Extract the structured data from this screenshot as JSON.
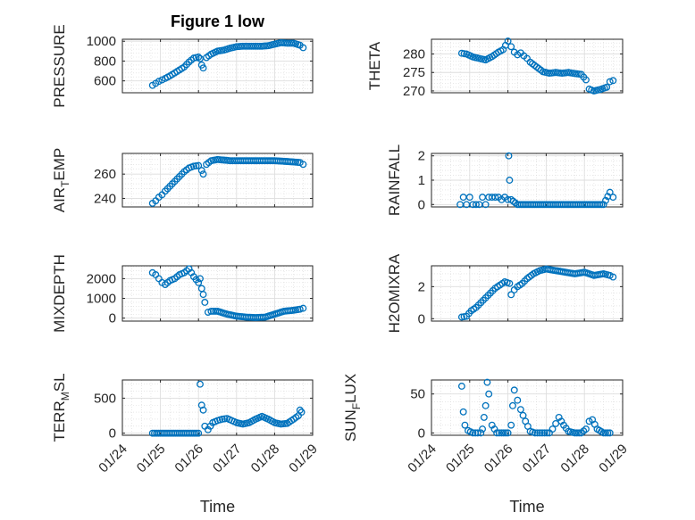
{
  "figure_title": "Figure 1 low",
  "marker_color": "#0072bd",
  "chart_data": [
    {
      "id": "pressure",
      "type": "scatter",
      "title": "Figure 1 low",
      "ylabel": "PRESSURE",
      "xlim": [
        "01/24",
        "01/29"
      ],
      "ylim": [
        480,
        1020
      ],
      "yticks": [
        600,
        800,
        1000
      ],
      "grid": true,
      "xticklabels": false,
      "x": [
        "01/24 19:00",
        "01/24 21:00",
        "01/24 23:00",
        "01/25 01:00",
        "01/25 03:00",
        "01/25 06:00",
        "01/25 09:00",
        "01/25 12:00",
        "01/25 15:00",
        "01/25 18:00",
        "01/25 21:00",
        "01/26 00:00",
        "01/26 01:00",
        "01/26 02:00",
        "01/26 03:00",
        "01/26 05:00",
        "01/26 08:00",
        "01/26 12:00",
        "01/26 16:00",
        "01/26 20:00",
        "01/27 00:00",
        "01/27 04:00",
        "01/27 08:00",
        "01/27 12:00",
        "01/27 16:00",
        "01/27 20:00",
        "01/28 00:00",
        "01/28 04:00",
        "01/28 08:00",
        "01/28 12:00",
        "01/28 16:00",
        "01/28 18:00"
      ],
      "y": [
        555,
        575,
        595,
        610,
        625,
        650,
        680,
        710,
        740,
        790,
        830,
        840,
        825,
        760,
        730,
        835,
        870,
        900,
        910,
        930,
        945,
        950,
        950,
        950,
        950,
        955,
        970,
        985,
        980,
        980,
        960,
        935
      ]
    },
    {
      "id": "theta",
      "type": "scatter",
      "ylabel": "THETA",
      "xlim": [
        "01/24",
        "01/29"
      ],
      "ylim": [
        269.5,
        284
      ],
      "yticks": [
        270,
        275,
        280
      ],
      "grid": true,
      "xticklabels": false,
      "x": [
        "01/24 19:00",
        "01/24 22:00",
        "01/25 02:00",
        "01/25 06:00",
        "01/25 10:00",
        "01/25 14:00",
        "01/25 18:00",
        "01/25 21:00",
        "01/26 00:00",
        "01/26 02:00",
        "01/26 04:00",
        "01/26 06:00",
        "01/26 08:00",
        "01/26 10:00",
        "01/26 12:00",
        "01/26 14:00",
        "01/26 18:00",
        "01/26 22:00",
        "01/27 02:00",
        "01/27 06:00",
        "01/27 10:00",
        "01/27 14:00",
        "01/27 18:00",
        "01/27 22:00",
        "01/28 01:00",
        "01/28 03:00",
        "01/28 06:00",
        "01/28 10:00",
        "01/28 14:00",
        "01/28 16:00",
        "01/28 18:00"
      ],
      "y": [
        280.2,
        280.0,
        279.2,
        278.8,
        278.4,
        279.3,
        280.5,
        281.2,
        283.5,
        282.0,
        280.5,
        279.8,
        280.3,
        279.5,
        278.8,
        277.8,
        276.5,
        275.2,
        274.8,
        275.0,
        274.8,
        275.0,
        274.7,
        274.5,
        273.0,
        270.5,
        270.0,
        270.4,
        271.0,
        272.5,
        272.8
      ]
    },
    {
      "id": "air-temp",
      "type": "scatter",
      "ylabel": "AIR_TEMP",
      "xlim": [
        "01/24",
        "01/29"
      ],
      "ylim": [
        233,
        277
      ],
      "yticks": [
        240,
        260
      ],
      "grid": true,
      "xticklabels": false,
      "x": [
        "01/24 19:00",
        "01/24 21:00",
        "01/24 23:00",
        "01/25 01:00",
        "01/25 03:00",
        "01/25 06:00",
        "01/25 09:00",
        "01/25 12:00",
        "01/25 15:00",
        "01/25 18:00",
        "01/25 21:00",
        "01/26 00:00",
        "01/26 02:00",
        "01/26 03:00",
        "01/26 05:00",
        "01/26 08:00",
        "01/26 12:00",
        "01/26 16:00",
        "01/26 20:00",
        "01/27 00:00",
        "01/27 06:00",
        "01/27 12:00",
        "01/27 18:00",
        "01/28 00:00",
        "01/28 06:00",
        "01/28 12:00",
        "01/28 16:00",
        "01/28 18:00"
      ],
      "y": [
        236,
        238,
        241,
        243,
        246,
        250,
        254,
        258,
        262,
        265,
        266.5,
        267,
        263,
        260,
        268,
        271,
        272,
        271.5,
        271,
        271,
        271,
        271,
        271,
        271,
        270.5,
        270,
        269.5,
        268
      ]
    },
    {
      "id": "rainfall",
      "type": "scatter",
      "ylabel": "RAINFALL",
      "xlim": [
        "01/24",
        "01/29"
      ],
      "ylim": [
        -0.1,
        2.1
      ],
      "yticks": [
        0,
        1,
        2
      ],
      "grid": true,
      "xticklabels": false,
      "x": [
        "01/24 18:00",
        "01/24 20:00",
        "01/24 22:00",
        "01/25 00:00",
        "01/25 02:00",
        "01/25 04:00",
        "01/25 06:00",
        "01/25 08:00",
        "01/25 10:00",
        "01/25 12:00",
        "01/25 14:00",
        "01/25 16:00",
        "01/25 18:00",
        "01/25 20:00",
        "01/25 22:00",
        "01/26 00:00",
        "01/26 00:30",
        "01/26 01:00",
        "01/26 02:00",
        "01/26 06:00",
        "01/26 12:00",
        "01/26 18:00",
        "01/27 00:00",
        "01/27 06:00",
        "01/27 12:00",
        "01/27 18:00",
        "01/28 00:00",
        "01/28 06:00",
        "01/28 12:00",
        "01/28 16:00",
        "01/28 18:00"
      ],
      "y": [
        0,
        0.3,
        0,
        0.3,
        0,
        0,
        0,
        0.3,
        0,
        0.3,
        0.3,
        0.3,
        0.3,
        0.2,
        0.3,
        0.2,
        2.0,
        1.0,
        0.2,
        0,
        0,
        0,
        0,
        0,
        0,
        0,
        0,
        0,
        0,
        0.5,
        0.3
      ]
    },
    {
      "id": "mixdepth",
      "type": "scatter",
      "ylabel": "MIXDEPTH",
      "xlim": [
        "01/24",
        "01/29"
      ],
      "ylim": [
        -150,
        2650
      ],
      "yticks": [
        0,
        1000,
        2000
      ],
      "grid": true,
      "xticklabels": false,
      "x": [
        "01/24 19:00",
        "01/24 21:00",
        "01/24 23:00",
        "01/25 01:00",
        "01/25 03:00",
        "01/25 06:00",
        "01/25 09:00",
        "01/25 12:00",
        "01/25 15:00",
        "01/25 18:00",
        "01/25 21:00",
        "01/26 00:00",
        "01/26 01:00",
        "01/26 02:00",
        "01/26 03:00",
        "01/26 04:00",
        "01/26 06:00",
        "01/26 08:00",
        "01/26 12:00",
        "01/26 18:00",
        "01/27 00:00",
        "01/27 06:00",
        "01/27 12:00",
        "01/27 18:00",
        "01/28 00:00",
        "01/28 06:00",
        "01/28 12:00",
        "01/28 16:00",
        "01/28 18:00"
      ],
      "y": [
        2300,
        2200,
        2000,
        1800,
        1700,
        1900,
        2000,
        2200,
        2300,
        2500,
        2100,
        1800,
        2000,
        1500,
        1200,
        800,
        300,
        350,
        350,
        200,
        100,
        50,
        30,
        50,
        200,
        350,
        400,
        450,
        500
      ]
    },
    {
      "id": "h2omixra",
      "type": "scatter",
      "ylabel": "H2OMIXRA",
      "xlim": [
        "01/24",
        "01/29"
      ],
      "ylim": [
        -0.15,
        3.3
      ],
      "yticks": [
        0,
        2
      ],
      "grid": true,
      "xticklabels": false,
      "x": [
        "01/24 19:00",
        "01/24 22:00",
        "01/25 01:00",
        "01/25 04:00",
        "01/25 07:00",
        "01/25 10:00",
        "01/25 13:00",
        "01/25 16:00",
        "01/25 19:00",
        "01/25 22:00",
        "01/26 01:00",
        "01/26 02:00",
        "01/26 04:00",
        "01/26 06:00",
        "01/26 09:00",
        "01/26 12:00",
        "01/26 16:00",
        "01/26 20:00",
        "01/27 00:00",
        "01/27 06:00",
        "01/27 12:00",
        "01/27 18:00",
        "01/28 00:00",
        "01/28 06:00",
        "01/28 12:00",
        "01/28 16:00",
        "01/28 18:00"
      ],
      "y": [
        0.1,
        0.15,
        0.5,
        0.7,
        1.0,
        1.3,
        1.6,
        1.9,
        2.1,
        2.3,
        2.2,
        1.5,
        1.8,
        2.0,
        2.2,
        2.5,
        2.8,
        3.0,
        3.1,
        3.0,
        2.9,
        2.8,
        2.9,
        2.7,
        2.8,
        2.7,
        2.6
      ]
    },
    {
      "id": "terr-msl",
      "type": "scatter",
      "ylabel": "TERR_MSL",
      "xlim": [
        "01/24",
        "01/29"
      ],
      "ylim": [
        -30,
        760
      ],
      "yticks": [
        0,
        500
      ],
      "grid": true,
      "xlabel": "Time",
      "xticks": [
        "01/24",
        "01/25",
        "01/26",
        "01/27",
        "01/28",
        "01/29"
      ],
      "x": [
        "01/24 19:00",
        "01/25 00:00",
        "01/25 06:00",
        "01/25 12:00",
        "01/25 18:00",
        "01/26 00:00",
        "01/26 01:00",
        "01/26 02:00",
        "01/26 03:00",
        "01/26 04:00",
        "01/26 06:00",
        "01/26 09:00",
        "01/26 12:00",
        "01/26 15:00",
        "01/26 18:00",
        "01/26 21:00",
        "01/27 00:00",
        "01/27 04:00",
        "01/27 08:00",
        "01/27 12:00",
        "01/27 16:00",
        "01/27 20:00",
        "01/28 00:00",
        "01/28 04:00",
        "01/28 08:00",
        "01/28 12:00",
        "01/28 15:00",
        "01/28 16:00",
        "01/28 17:00"
      ],
      "y": [
        0,
        0,
        0,
        0,
        0,
        0,
        700,
        400,
        330,
        100,
        50,
        150,
        180,
        200,
        210,
        180,
        150,
        130,
        150,
        200,
        240,
        200,
        150,
        130,
        140,
        200,
        250,
        330,
        300
      ]
    },
    {
      "id": "sun-flux",
      "type": "scatter",
      "ylabel": "SUN_FLUX",
      "xlim": [
        "01/24",
        "01/29"
      ],
      "ylim": [
        -3,
        68
      ],
      "yticks": [
        0,
        50
      ],
      "grid": true,
      "xlabel": "Time",
      "xticks": [
        "01/24",
        "01/25",
        "01/26",
        "01/27",
        "01/28",
        "01/29"
      ],
      "x": [
        "01/24 19:00",
        "01/24 20:00",
        "01/24 21:00",
        "01/24 23:00",
        "01/25 02:00",
        "01/25 05:00",
        "01/25 07:00",
        "01/25 08:00",
        "01/25 09:00",
        "01/25 10:00",
        "01/25 11:00",
        "01/25 12:00",
        "01/25 14:00",
        "01/25 17:00",
        "01/25 20:00",
        "01/26 00:00",
        "01/26 02:00",
        "01/26 03:00",
        "01/26 04:00",
        "01/26 06:00",
        "01/26 08:00",
        "01/26 11:00",
        "01/26 14:00",
        "01/26 17:00",
        "01/26 20:00",
        "01/26 23:00",
        "01/27 02:00",
        "01/27 04:00",
        "01/27 06:00",
        "01/27 08:00",
        "01/27 11:00",
        "01/27 14:00",
        "01/27 18:00",
        "01/27 22:00",
        "01/28 01:00",
        "01/28 03:00",
        "01/28 05:00",
        "01/28 08:00",
        "01/28 12:00",
        "01/28 16:00"
      ],
      "y": [
        60,
        27,
        10,
        3,
        0,
        0,
        0,
        5,
        20,
        35,
        65,
        50,
        10,
        0,
        0,
        0,
        10,
        35,
        55,
        42,
        30,
        15,
        2,
        0,
        0,
        0,
        0,
        5,
        12,
        20,
        10,
        2,
        0,
        0,
        5,
        15,
        17,
        5,
        0,
        0
      ]
    }
  ]
}
